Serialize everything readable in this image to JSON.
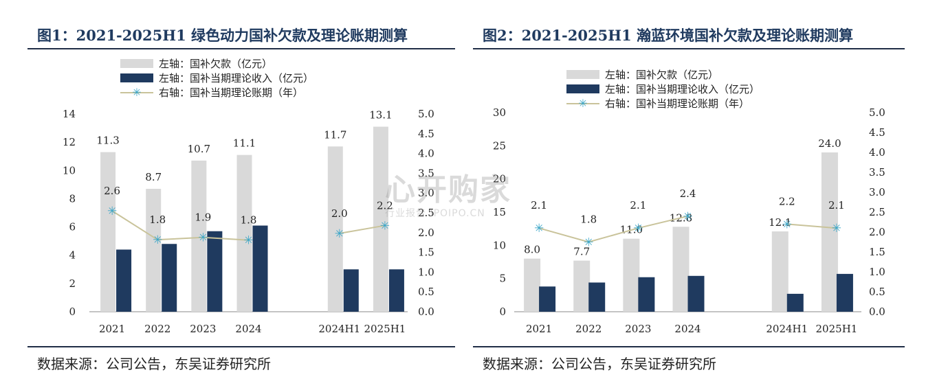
{
  "chart_data": [
    {
      "type": "bar",
      "title": "图1：2021-2025H1 绿色动力国补欠款及理论账期测算",
      "source": "数据来源：公司公告，东吴证券研究所",
      "categories": [
        "2021",
        "2022",
        "2023",
        "2024",
        "",
        "2024H1",
        "2025H1"
      ],
      "series": [
        {
          "name": "左轴：国补欠款（亿元）",
          "axis": "left",
          "kind": "bar",
          "color": "#d9d9d9",
          "values": [
            11.3,
            8.7,
            10.7,
            11.1,
            null,
            11.7,
            13.1
          ],
          "labels": [
            "11.3",
            "8.7",
            "10.7",
            "11.1",
            "",
            "11.7",
            "13.1"
          ]
        },
        {
          "name": "左轴：国补当期理论收入（亿元）",
          "axis": "left",
          "kind": "bar",
          "color": "#1f3a5f",
          "values": [
            4.4,
            4.8,
            5.7,
            6.1,
            null,
            3.0,
            3.0
          ]
        },
        {
          "name": "右轴：国补当期理论账期（年）",
          "axis": "right",
          "kind": "line",
          "color": "#c9c39a",
          "marker_color": "#3aa6c8",
          "values": [
            2.55,
            1.82,
            1.88,
            1.81,
            null,
            1.98,
            2.18
          ],
          "labels": [
            "2.6",
            "1.8",
            "1.9",
            "1.8",
            "",
            "2.0",
            "2.2"
          ]
        }
      ],
      "ylim_left": [
        0,
        14
      ],
      "yticks_left": [
        "0",
        "2",
        "4",
        "6",
        "8",
        "10",
        "12",
        "14"
      ],
      "ylim_right": [
        0,
        5
      ],
      "yticks_right": [
        "0.0",
        "0.5",
        "1.0",
        "1.5",
        "2.0",
        "2.5",
        "3.0",
        "3.5",
        "4.0",
        "4.5",
        "5.0"
      ]
    },
    {
      "type": "bar",
      "title": "图2：2021-2025H1 瀚蓝环境国补欠款及理论账期测算",
      "source": "数据来源：公司公告，东吴证券研究所",
      "categories": [
        "2021",
        "2022",
        "2023",
        "2024",
        "",
        "2024H1",
        "2025H1"
      ],
      "series": [
        {
          "name": "左轴：国补欠款（亿元）",
          "axis": "left",
          "kind": "bar",
          "color": "#d9d9d9",
          "values": [
            8.0,
            7.7,
            11.0,
            12.8,
            null,
            12.1,
            24.0
          ],
          "labels": [
            "8.0",
            "7.7",
            "11.0",
            "12.8",
            "",
            "12.1",
            "24.0"
          ]
        },
        {
          "name": "左轴：国补当期理论收入（亿元）",
          "axis": "left",
          "kind": "bar",
          "color": "#1f3a5f",
          "values": [
            3.8,
            4.4,
            5.2,
            5.4,
            null,
            2.7,
            5.7
          ]
        },
        {
          "name": "右轴：国补当期理论账期（年）",
          "axis": "right",
          "kind": "line",
          "color": "#c9c39a",
          "marker_color": "#3aa6c8",
          "values": [
            2.1,
            1.75,
            2.1,
            2.4,
            null,
            2.2,
            2.1
          ],
          "labels": [
            "2.1",
            "1.8",
            "2.1",
            "2.4",
            "",
            "2.2",
            "2.1"
          ]
        }
      ],
      "ylim_left": [
        0,
        30
      ],
      "yticks_left": [
        "0",
        "5",
        "10",
        "15",
        "20",
        "25",
        "30"
      ],
      "ylim_right": [
        0,
        5
      ],
      "yticks_right": [
        "0.0",
        "0.5",
        "1.0",
        "1.5",
        "2.0",
        "2.5",
        "3.0",
        "3.5",
        "4.0",
        "4.5",
        "5.0"
      ]
    }
  ],
  "watermark": {
    "main": "心开购家",
    "sub": "行业报告 IPOIPO.CN"
  }
}
